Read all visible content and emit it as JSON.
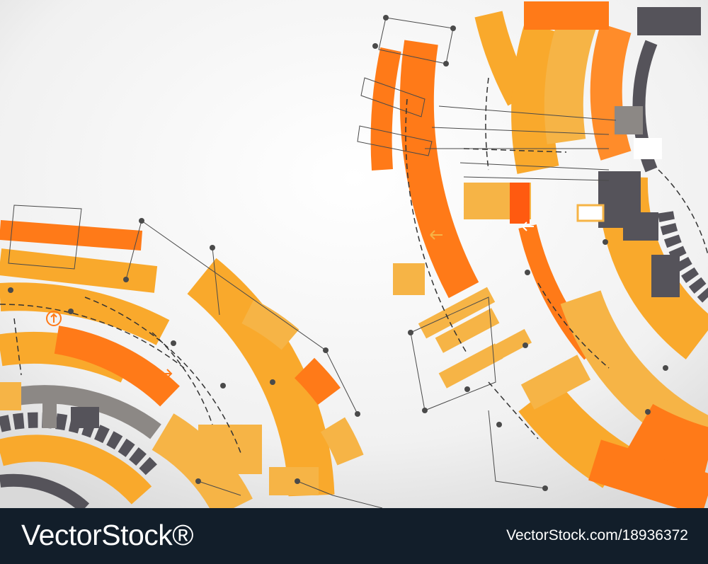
{
  "footer": {
    "brand": "VectorStock®",
    "stock_id": "VectorStock.com/18936372"
  },
  "illustration": {
    "subject": "abstract technology circle background",
    "colors": {
      "orange": "#ff7a18",
      "light_orange": "#f9a92c",
      "amber": "#f6b446",
      "dark_gray": "#55535a",
      "mid_gray": "#8c8885",
      "line": "#4a4a4a",
      "footer_bg": "#121e2a"
    }
  }
}
